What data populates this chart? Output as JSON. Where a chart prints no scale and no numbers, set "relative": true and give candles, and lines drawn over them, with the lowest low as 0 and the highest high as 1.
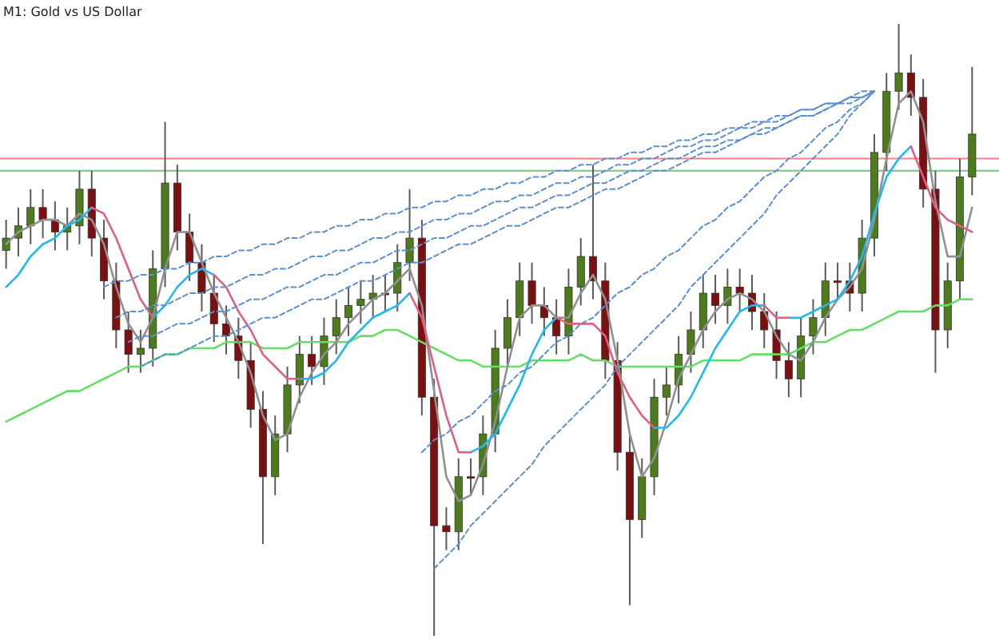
{
  "chart_data": {
    "type": "candlestick",
    "title": "M1: Gold vs US Dollar",
    "relative": true,
    "categories": [
      null,
      null,
      null,
      null,
      null,
      null,
      null,
      null,
      null,
      null,
      null,
      null,
      null,
      null,
      null,
      null,
      null,
      null,
      null,
      null,
      null,
      null,
      null,
      null,
      null,
      null,
      null,
      null,
      null,
      null,
      null,
      null,
      null,
      null,
      null,
      null,
      null,
      null,
      null,
      null,
      null,
      null,
      null,
      null,
      null,
      null,
      null,
      null,
      null,
      null,
      null,
      null,
      null,
      null,
      null,
      null,
      null,
      null,
      null,
      null,
      null,
      null,
      null,
      null,
      null,
      null,
      null,
      null,
      null,
      null,
      null,
      null,
      null,
      null,
      null,
      null,
      null,
      null,
      null,
      null
    ],
    "ohlc": [
      [
        0.63,
        0.68,
        0.6,
        0.65
      ],
      [
        0.65,
        0.7,
        0.62,
        0.67
      ],
      [
        0.67,
        0.73,
        0.64,
        0.7
      ],
      [
        0.7,
        0.73,
        0.65,
        0.68
      ],
      [
        0.68,
        0.71,
        0.63,
        0.66
      ],
      [
        0.66,
        0.7,
        0.63,
        0.67
      ],
      [
        0.67,
        0.76,
        0.64,
        0.73
      ],
      [
        0.73,
        0.76,
        0.62,
        0.65
      ],
      [
        0.65,
        0.68,
        0.55,
        0.58
      ],
      [
        0.58,
        0.61,
        0.47,
        0.5
      ],
      [
        0.5,
        0.53,
        0.43,
        0.46
      ],
      [
        0.46,
        0.5,
        0.43,
        0.47
      ],
      [
        0.47,
        0.63,
        0.44,
        0.6
      ],
      [
        0.6,
        0.84,
        0.57,
        0.74
      ],
      [
        0.74,
        0.77,
        0.63,
        0.66
      ],
      [
        0.66,
        0.69,
        0.58,
        0.61
      ],
      [
        0.61,
        0.64,
        0.53,
        0.56
      ],
      [
        0.56,
        0.59,
        0.48,
        0.51
      ],
      [
        0.51,
        0.54,
        0.46,
        0.49
      ],
      [
        0.49,
        0.52,
        0.42,
        0.45
      ],
      [
        0.45,
        0.48,
        0.34,
        0.37
      ],
      [
        0.37,
        0.4,
        0.15,
        0.26
      ],
      [
        0.26,
        0.36,
        0.23,
        0.33
      ],
      [
        0.33,
        0.44,
        0.3,
        0.41
      ],
      [
        0.41,
        0.49,
        0.38,
        0.46
      ],
      [
        0.46,
        0.49,
        0.41,
        0.44
      ],
      [
        0.44,
        0.52,
        0.41,
        0.49
      ],
      [
        0.49,
        0.55,
        0.46,
        0.52
      ],
      [
        0.52,
        0.57,
        0.49,
        0.54
      ],
      [
        0.54,
        0.58,
        0.51,
        0.55
      ],
      [
        0.55,
        0.59,
        0.52,
        0.56
      ],
      [
        0.56,
        0.59,
        0.53,
        0.56
      ],
      [
        0.56,
        0.64,
        0.53,
        0.61
      ],
      [
        0.61,
        0.73,
        0.58,
        0.65
      ],
      [
        0.65,
        0.68,
        0.36,
        0.39
      ],
      [
        0.39,
        0.42,
        0,
        0.18
      ],
      [
        0.18,
        0.21,
        0.14,
        0.17
      ],
      [
        0.17,
        0.29,
        0.14,
        0.26
      ],
      [
        0.26,
        0.29,
        0.23,
        0.26
      ],
      [
        0.26,
        0.36,
        0.23,
        0.33
      ],
      [
        0.33,
        0.5,
        0.3,
        0.47
      ],
      [
        0.47,
        0.55,
        0.44,
        0.52
      ],
      [
        0.52,
        0.61,
        0.49,
        0.58
      ],
      [
        0.58,
        0.61,
        0.51,
        0.54
      ],
      [
        0.54,
        0.57,
        0.49,
        0.52
      ],
      [
        0.52,
        0.55,
        0.46,
        0.49
      ],
      [
        0.49,
        0.6,
        0.46,
        0.57
      ],
      [
        0.57,
        0.65,
        0.54,
        0.62
      ],
      [
        0.62,
        0.77,
        0.55,
        0.58
      ],
      [
        0.58,
        0.61,
        0.42,
        0.45
      ],
      [
        0.45,
        0.48,
        0.27,
        0.3
      ],
      [
        0.3,
        0.33,
        0.05,
        0.19
      ],
      [
        0.19,
        0.29,
        0.16,
        0.26
      ],
      [
        0.26,
        0.42,
        0.23,
        0.39
      ],
      [
        0.39,
        0.44,
        0.36,
        0.41
      ],
      [
        0.41,
        0.49,
        0.38,
        0.46
      ],
      [
        0.46,
        0.53,
        0.43,
        0.5
      ],
      [
        0.5,
        0.59,
        0.47,
        0.56
      ],
      [
        0.56,
        0.59,
        0.51,
        0.54
      ],
      [
        0.54,
        0.6,
        0.51,
        0.57
      ],
      [
        0.57,
        0.6,
        0.53,
        0.56
      ],
      [
        0.56,
        0.59,
        0.5,
        0.53
      ],
      [
        0.53,
        0.56,
        0.47,
        0.5
      ],
      [
        0.5,
        0.53,
        0.42,
        0.45
      ],
      [
        0.45,
        0.48,
        0.39,
        0.42
      ],
      [
        0.42,
        0.52,
        0.39,
        0.49
      ],
      [
        0.49,
        0.55,
        0.46,
        0.52
      ],
      [
        0.52,
        0.61,
        0.49,
        0.58
      ],
      [
        0.58,
        0.61,
        0.55,
        0.58
      ],
      [
        0.58,
        0.61,
        0.53,
        0.56
      ],
      [
        0.56,
        0.68,
        0.53,
        0.65
      ],
      [
        0.65,
        0.82,
        0.62,
        0.79
      ],
      [
        0.79,
        0.92,
        0.76,
        0.89
      ],
      [
        0.89,
        1,
        0.86,
        0.92
      ],
      [
        0.92,
        0.95,
        0.85,
        0.88
      ],
      [
        0.88,
        0.91,
        0.7,
        0.73
      ],
      [
        0.73,
        0.76,
        0.43,
        0.5
      ],
      [
        0.5,
        0.61,
        0.47,
        0.58
      ],
      [
        0.58,
        0.78,
        0.55,
        0.75
      ],
      [
        0.75,
        0.93,
        0.72,
        0.82
      ]
    ],
    "colors": [
      "#4c7c1c",
      "#4c7c1c",
      "#4c7c1c",
      "#7c1010",
      "#7c1010",
      "#4c7c1c",
      "#4c7c1c",
      "#7c1010",
      "#7c1010",
      "#7c1010",
      "#7c1010",
      "#4c7c1c",
      "#4c7c1c",
      "#4c7c1c",
      "#7c1010",
      "#7c1010",
      "#7c1010",
      "#7c1010",
      "#7c1010",
      "#7c1010",
      "#7c1010",
      "#7c1010",
      "#4c7c1c",
      "#4c7c1c",
      "#4c7c1c",
      "#7c1010",
      "#4c7c1c",
      "#4c7c1c",
      "#4c7c1c",
      "#4c7c1c",
      "#4c7c1c",
      "#7c1010",
      "#4c7c1c",
      "#4c7c1c",
      "#7c1010",
      "#7c1010",
      "#7c1010",
      "#4c7c1c",
      "#7c1010",
      "#4c7c1c",
      "#4c7c1c",
      "#4c7c1c",
      "#4c7c1c",
      "#7c1010",
      "#7c1010",
      "#7c1010",
      "#4c7c1c",
      "#4c7c1c",
      "#7c1010",
      "#7c1010",
      "#7c1010",
      "#7c1010",
      "#4c7c1c",
      "#4c7c1c",
      "#4c7c1c",
      "#4c7c1c",
      "#4c7c1c",
      "#4c7c1c",
      "#7c1010",
      "#4c7c1c",
      "#7c1010",
      "#7c1010",
      "#7c1010",
      "#7c1010",
      "#7c1010",
      "#4c7c1c",
      "#4c7c1c",
      "#4c7c1c",
      "#7c1010",
      "#7c1010",
      "#4c7c1c",
      "#4c7c1c",
      "#4c7c1c",
      "#4c7c1c",
      "#7c1010",
      "#7c1010",
      "#7c1010",
      "#4c7c1c",
      "#4c7c1c",
      "#4c7c1c"
    ],
    "series": [
      {
        "type": "line",
        "color": "#66dd66",
        "values": [
          0.35,
          0.36,
          0.37,
          0.38,
          0.39,
          0.4,
          0.4,
          0.41,
          0.42,
          0.43,
          0.44,
          0.44,
          0.45,
          0.46,
          0.46,
          0.47,
          0.47,
          0.47,
          0.48,
          0.48,
          0.48,
          0.47,
          0.47,
          0.47,
          0.48,
          0.48,
          0.48,
          0.48,
          0.48,
          0.49,
          0.49,
          0.5,
          0.5,
          0.49,
          0.48,
          0.47,
          0.46,
          0.45,
          0.45,
          0.44,
          0.44,
          0.44,
          0.44,
          0.45,
          0.45,
          0.45,
          0.45,
          0.46,
          0.45,
          0.45,
          0.44,
          0.44,
          0.44,
          0.44,
          0.44,
          0.44,
          0.44,
          0.45,
          0.45,
          0.45,
          0.45,
          0.46,
          0.46,
          0.46,
          0.46,
          0.47,
          0.48,
          0.48,
          0.49,
          0.5,
          0.5,
          0.51,
          0.52,
          0.53,
          0.53,
          0.53,
          0.54,
          0.54,
          0.55,
          0.55
        ]
      },
      {
        "type": "line",
        "color": "#909090",
        "values": [
          0.64,
          0.66,
          0.67,
          0.68,
          0.68,
          0.67,
          0.69,
          0.68,
          0.64,
          0.57,
          0.51,
          0.48,
          0.52,
          0.6,
          0.66,
          0.66,
          0.61,
          0.56,
          0.52,
          0.48,
          0.43,
          0.36,
          0.32,
          0.33,
          0.39,
          0.43,
          0.46,
          0.48,
          0.51,
          0.53,
          0.55,
          0.56,
          0.58,
          0.6,
          0.54,
          0.4,
          0.26,
          0.22,
          0.23,
          0.28,
          0.35,
          0.44,
          0.52,
          0.54,
          0.54,
          0.52,
          0.52,
          0.56,
          0.59,
          0.55,
          0.45,
          0.33,
          0.26,
          0.29,
          0.35,
          0.42,
          0.46,
          0.5,
          0.53,
          0.55,
          0.56,
          0.55,
          0.53,
          0.49,
          0.46,
          0.45,
          0.48,
          0.52,
          0.55,
          0.57,
          0.6,
          0.68,
          0.78,
          0.87,
          0.89,
          0.84,
          0.71,
          0.62,
          0.62,
          0.7
        ]
      },
      {
        "type": "line",
        "color": "#20b8f0",
        "values": [
          0.57,
          0.59,
          0.62,
          0.64,
          0.65,
          0.67,
          0.68,
          0.7,
          null,
          null,
          null,
          null,
          0.52,
          0.54,
          0.57,
          0.59,
          0.6,
          0.59,
          null,
          null,
          null,
          null,
          null,
          null,
          0.42,
          0.42,
          0.43,
          0.45,
          0.48,
          0.5,
          0.52,
          0.53,
          0.54,
          0.56,
          null,
          null,
          null,
          null,
          0.3,
          0.31,
          0.33,
          0.37,
          0.41,
          0.46,
          0.5,
          0.52,
          null,
          null,
          null,
          null,
          null,
          null,
          null,
          0.34,
          0.34,
          0.36,
          0.39,
          0.43,
          0.47,
          0.5,
          0.53,
          0.54,
          0.54,
          null,
          0.52,
          0.52,
          0.53,
          0.54,
          0.55,
          0.58,
          0.62,
          0.69,
          0.75,
          0.78,
          0.8,
          null,
          null,
          null,
          null,
          null
        ]
      },
      {
        "type": "line",
        "color": "#e06080",
        "values": [
          null,
          null,
          null,
          null,
          null,
          null,
          null,
          0.7,
          0.69,
          0.65,
          0.6,
          0.55,
          0.52,
          null,
          null,
          null,
          null,
          0.59,
          0.57,
          0.53,
          0.5,
          0.46,
          0.44,
          0.42,
          0.42,
          null,
          null,
          null,
          null,
          null,
          null,
          null,
          null,
          0.56,
          0.52,
          0.44,
          0.36,
          0.3,
          0.3,
          null,
          null,
          null,
          null,
          null,
          null,
          0.52,
          0.51,
          0.51,
          0.51,
          0.49,
          0.43,
          0.39,
          0.36,
          0.34,
          null,
          null,
          null,
          null,
          null,
          null,
          null,
          null,
          0.54,
          0.52,
          0.52,
          null,
          null,
          null,
          null,
          null,
          null,
          null,
          null,
          null,
          0.8,
          0.75,
          0.7,
          0.68,
          0.67,
          0.66
        ]
      },
      {
        "type": "line",
        "color": "#5b8fd0",
        "line_style": "dashed",
        "values": [
          null,
          null,
          null,
          null,
          null,
          null,
          null,
          null,
          0.57,
          0.58,
          0.58,
          0.59,
          0.59,
          0.6,
          0.6,
          0.61,
          0.61,
          0.62,
          0.62,
          0.63,
          0.63,
          0.64,
          0.64,
          0.65,
          0.65,
          0.66,
          0.66,
          0.67,
          0.67,
          0.68,
          0.68,
          0.69,
          0.69,
          0.7,
          0.7,
          0.71,
          0.71,
          0.72,
          0.72,
          0.73,
          0.73,
          0.74,
          0.74,
          0.75,
          0.75,
          0.76,
          0.76,
          0.77,
          0.77,
          0.78,
          0.78,
          0.79,
          0.79,
          0.8,
          0.8,
          0.81,
          0.81,
          0.82,
          0.82,
          0.83,
          0.83,
          0.84,
          0.84,
          0.85,
          0.85,
          0.86,
          0.86,
          0.87,
          0.87,
          0.88,
          0.88,
          0.89,
          null,
          null,
          null,
          null,
          null,
          null,
          null,
          null
        ]
      },
      {
        "type": "line",
        "color": "#5b8fd0",
        "line_style": "dashed",
        "values": [
          null,
          null,
          null,
          null,
          null,
          null,
          null,
          null,
          null,
          0.52,
          0.53,
          0.53,
          0.54,
          0.54,
          0.55,
          0.56,
          0.56,
          0.57,
          0.57,
          0.58,
          0.59,
          0.59,
          0.6,
          0.6,
          0.61,
          0.62,
          0.62,
          0.63,
          0.63,
          0.64,
          0.65,
          0.65,
          0.66,
          0.66,
          0.67,
          0.68,
          0.68,
          0.69,
          0.69,
          0.7,
          0.71,
          0.71,
          0.72,
          0.72,
          0.73,
          0.74,
          0.74,
          0.75,
          0.75,
          0.76,
          0.77,
          0.77,
          0.78,
          0.78,
          0.79,
          0.8,
          0.8,
          0.81,
          0.81,
          0.82,
          0.83,
          0.83,
          0.84,
          0.84,
          0.85,
          0.86,
          0.86,
          0.87,
          0.87,
          0.88,
          0.89,
          0.89,
          null,
          null,
          null,
          null,
          null,
          null,
          null,
          null
        ]
      },
      {
        "type": "line",
        "color": "#5b8fd0",
        "line_style": "dashed",
        "values": [
          null,
          null,
          null,
          null,
          null,
          null,
          null,
          null,
          null,
          null,
          0.48,
          0.49,
          0.49,
          0.5,
          0.51,
          0.51,
          0.52,
          0.53,
          0.53,
          0.54,
          0.55,
          0.55,
          0.56,
          0.57,
          0.57,
          0.58,
          0.59,
          0.59,
          0.6,
          0.61,
          0.61,
          0.62,
          0.63,
          0.63,
          0.64,
          0.65,
          0.65,
          0.66,
          0.67,
          0.67,
          0.68,
          0.69,
          0.7,
          0.7,
          0.71,
          0.72,
          0.72,
          0.73,
          0.74,
          0.74,
          0.75,
          0.76,
          0.76,
          0.77,
          0.78,
          0.78,
          0.79,
          0.8,
          0.8,
          0.81,
          0.81,
          0.82,
          0.83,
          0.83,
          0.84,
          0.85,
          0.85,
          0.86,
          0.87,
          0.87,
          0.88,
          0.89,
          null,
          null,
          null,
          null,
          null,
          null,
          null,
          null
        ]
      },
      {
        "type": "line",
        "color": "#5b8fd0",
        "line_style": "dashed",
        "values": [
          null,
          null,
          null,
          null,
          null,
          null,
          null,
          null,
          null,
          null,
          null,
          0.44,
          0.45,
          0.46,
          0.46,
          0.47,
          0.48,
          0.49,
          0.49,
          0.5,
          0.51,
          0.52,
          0.52,
          0.53,
          0.54,
          0.55,
          0.55,
          0.56,
          0.57,
          0.58,
          0.58,
          0.59,
          0.6,
          0.61,
          0.61,
          0.62,
          0.63,
          0.64,
          0.64,
          0.65,
          0.66,
          0.67,
          0.67,
          0.68,
          0.69,
          0.7,
          0.7,
          0.71,
          0.72,
          0.73,
          0.73,
          0.74,
          0.75,
          0.76,
          0.76,
          0.77,
          0.78,
          0.79,
          0.79,
          0.8,
          0.81,
          0.82,
          0.82,
          0.83,
          0.84,
          0.85,
          0.85,
          0.86,
          0.87,
          0.88,
          0.88,
          0.89,
          null,
          null,
          null,
          null,
          null,
          null,
          null,
          null
        ]
      },
      {
        "type": "line",
        "color": "#5b8fd0",
        "line_style": "dashed",
        "values": [
          null,
          null,
          null,
          null,
          null,
          null,
          null,
          null,
          null,
          null,
          null,
          null,
          null,
          null,
          null,
          null,
          null,
          null,
          null,
          null,
          null,
          null,
          null,
          null,
          null,
          null,
          null,
          null,
          null,
          null,
          null,
          null,
          null,
          null,
          0.3,
          0.32,
          0.33,
          0.35,
          0.36,
          0.38,
          0.4,
          0.41,
          0.43,
          0.44,
          0.46,
          0.48,
          0.49,
          0.51,
          0.52,
          0.54,
          0.56,
          0.57,
          0.59,
          0.6,
          0.62,
          0.63,
          0.65,
          0.67,
          0.68,
          0.7,
          0.71,
          0.73,
          0.75,
          0.76,
          0.78,
          0.79,
          0.81,
          0.83,
          0.84,
          0.86,
          0.87,
          0.89,
          null,
          null,
          null,
          null,
          null,
          null,
          null,
          null
        ]
      },
      {
        "type": "line",
        "color": "#5b8fd0",
        "line_style": "dashed",
        "values": [
          null,
          null,
          null,
          null,
          null,
          null,
          null,
          null,
          null,
          null,
          null,
          null,
          null,
          null,
          null,
          null,
          null,
          null,
          null,
          null,
          null,
          null,
          null,
          null,
          null,
          null,
          null,
          null,
          null,
          null,
          null,
          null,
          null,
          null,
          null,
          0.11,
          0.13,
          0.15,
          0.18,
          0.2,
          0.22,
          0.24,
          0.26,
          0.28,
          0.31,
          0.33,
          0.35,
          0.37,
          0.39,
          0.41,
          0.44,
          0.46,
          0.48,
          0.5,
          0.52,
          0.54,
          0.57,
          0.59,
          0.61,
          0.63,
          0.65,
          0.67,
          0.69,
          0.72,
          0.74,
          0.76,
          0.78,
          0.8,
          0.82,
          0.85,
          0.87,
          0.89,
          null,
          null,
          null,
          null,
          null,
          null,
          null,
          null
        ]
      }
    ],
    "ref_lines": [
      {
        "axis": "y",
        "value": 0.78,
        "color": "#ff8080"
      },
      {
        "axis": "y",
        "value": 0.76,
        "color": "#80c080"
      }
    ]
  }
}
